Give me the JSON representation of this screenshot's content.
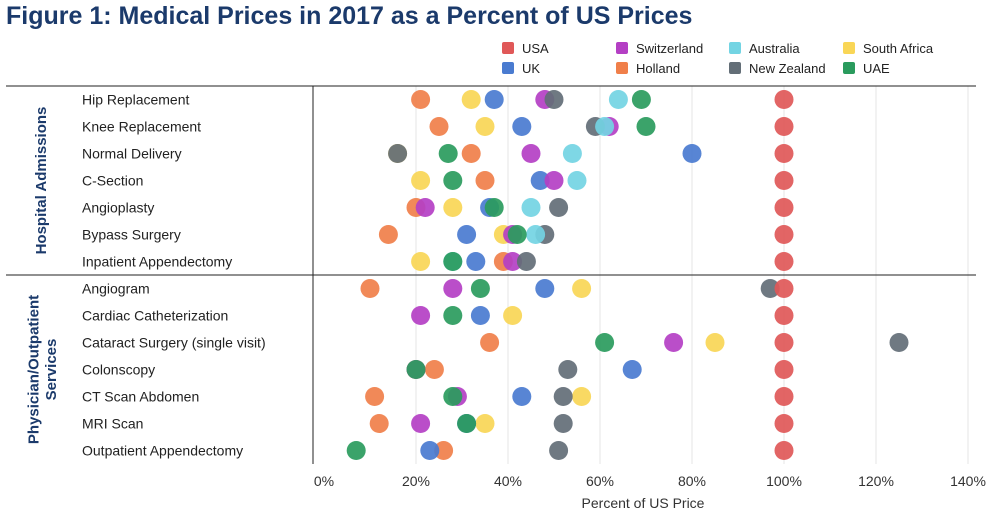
{
  "chart_data": {
    "type": "scatter",
    "title": "Figure 1: Medical Prices in 2017 as a Percent of US Prices",
    "xlabel": "Percent of US Price",
    "xlim": [
      -2,
      142
    ],
    "xticks": [
      "0%",
      "20%",
      "40%",
      "60%",
      "80%",
      "100%",
      "120%",
      "140%"
    ],
    "xtick_values": [
      0,
      20,
      40,
      60,
      80,
      100,
      120,
      140
    ],
    "groups": [
      {
        "name": "Hospital Admissions",
        "rows": 7
      },
      {
        "name": "Physician/Outpatient Services",
        "rows": 7
      }
    ],
    "categories": [
      "Hip Replacement",
      "Knee Replacement",
      "Normal Delivery",
      "C-Section",
      "Angioplasty",
      "Bypass Surgery",
      "Inpatient Appendectomy",
      "Angiogram",
      "Cardiac Catheterization",
      "Cataract Surgery (single visit)",
      "Colonscopy",
      "CT Scan Abdomen",
      "MRI Scan",
      "Outpatient Appendectomy"
    ],
    "legend": [
      "USA",
      "UK",
      "Switzerland",
      "Holland",
      "Australia",
      "New Zealand",
      "South Africa",
      "UAE"
    ],
    "series": [
      {
        "name": "Holland",
        "color": "#f07f4a",
        "values": [
          21,
          25,
          32,
          35,
          20,
          14,
          39,
          10,
          null,
          36,
          24,
          11,
          12,
          26
        ]
      },
      {
        "name": "South Africa",
        "color": "#f9d656",
        "values": [
          32,
          35,
          16,
          21,
          28,
          39,
          21,
          56,
          41,
          85,
          20,
          56,
          35,
          null
        ]
      },
      {
        "name": "UK",
        "color": "#4a7bd0",
        "values": [
          37,
          43,
          80,
          47,
          36,
          31,
          33,
          48,
          34,
          null,
          67,
          43,
          31,
          23
        ]
      },
      {
        "name": "Switzerland",
        "color": "#b43fc4",
        "values": [
          48,
          62,
          45,
          50,
          22,
          41,
          41,
          28,
          21,
          76,
          20,
          29,
          21,
          null
        ]
      },
      {
        "name": "New Zealand",
        "color": "#636e77",
        "values": [
          50,
          59,
          16,
          null,
          51,
          48,
          44,
          97,
          null,
          125,
          53,
          52,
          52,
          51
        ]
      },
      {
        "name": "Australia",
        "color": "#73d4e3",
        "values": [
          64,
          61,
          54,
          55,
          45,
          46,
          28,
          null,
          null,
          null,
          null,
          null,
          null,
          null
        ]
      },
      {
        "name": "UAE",
        "color": "#2a9b5d",
        "values": [
          69,
          70,
          27,
          28,
          37,
          42,
          28,
          34,
          28,
          61,
          20,
          28,
          31,
          7
        ]
      },
      {
        "name": "USA",
        "color": "#e05858",
        "values": [
          100,
          100,
          100,
          100,
          100,
          100,
          100,
          100,
          100,
          100,
          100,
          100,
          100,
          100
        ]
      }
    ]
  }
}
